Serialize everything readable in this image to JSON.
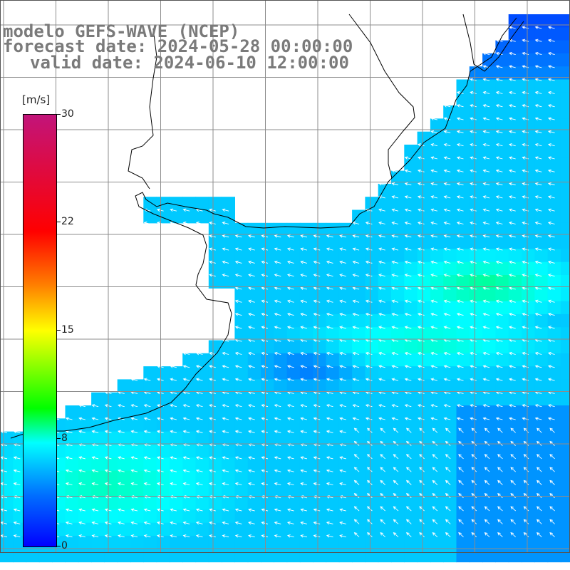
{
  "title": {
    "line1": "modelo GEFS-WAVE (NCEP)",
    "line2": "forecast date: 2024-05-28 00:00:00",
    "line3": "valid date: 2024-06-10 12:00:00"
  },
  "colorbar": {
    "unit": "[m/s]",
    "min": 0,
    "max": 30,
    "ticks": [
      "30",
      "22",
      "15",
      "8",
      "0"
    ],
    "tick_values": [
      30,
      22,
      15,
      8,
      0
    ],
    "colors": [
      "#0000ff",
      "#0070ff",
      "#00ffff",
      "#00ff00",
      "#ffff00",
      "#ff7a00",
      "#ff0000",
      "#c2147a"
    ]
  },
  "map": {
    "field": "wind speed",
    "land_color": "#ffffff",
    "coast_color": "#000000",
    "grid_color": "#8c8c8c",
    "arrow_color": "#ffffff",
    "dominant_wind_direction": "from east-southeast toward west-northwest"
  }
}
